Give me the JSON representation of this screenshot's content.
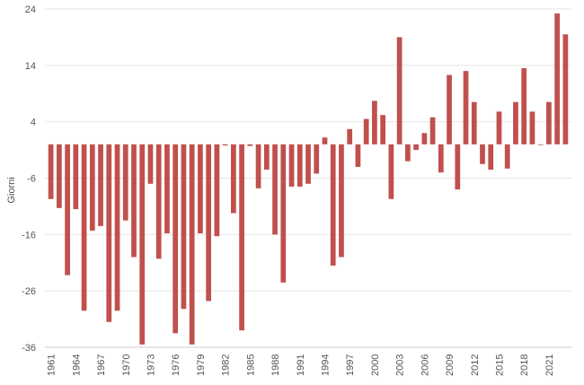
{
  "chart_data": {
    "type": "bar",
    "title": "",
    "xlabel": "",
    "ylabel": "Giorni",
    "ylim": [
      -36,
      24
    ],
    "yticks": [
      24,
      14,
      4,
      -6,
      -16,
      -26,
      -36
    ],
    "grid": true,
    "legend": "none",
    "bar_color": "#c0504d",
    "xtick_labels": [
      "1961",
      "1964",
      "1967",
      "1970",
      "1973",
      "1976",
      "1979",
      "1982",
      "1985",
      "1988",
      "1991",
      "1994",
      "1997",
      "2000",
      "2003",
      "2006",
      "2009",
      "2012",
      "2015",
      "2018",
      "2021"
    ],
    "categories": [
      "1961",
      "1962",
      "1963",
      "1964",
      "1965",
      "1966",
      "1967",
      "1968",
      "1969",
      "1970",
      "1971",
      "1972",
      "1973",
      "1974",
      "1975",
      "1976",
      "1977",
      "1978",
      "1979",
      "1980",
      "1981",
      "1982",
      "1983",
      "1984",
      "1985",
      "1986",
      "1987",
      "1988",
      "1989",
      "1990",
      "1991",
      "1992",
      "1993",
      "1994",
      "1995",
      "1996",
      "1997",
      "1998",
      "1999",
      "2000",
      "2001",
      "2002",
      "2003",
      "2004",
      "2005",
      "2006",
      "2007",
      "2008",
      "2009",
      "2010",
      "2011",
      "2012",
      "2013",
      "2014",
      "2015",
      "2016",
      "2017",
      "2018",
      "2019",
      "2020",
      "2021",
      "2022",
      "2023"
    ],
    "values": [
      -9.7,
      -11.3,
      -23.2,
      -11.5,
      -29.5,
      -15.3,
      -14.5,
      -31.5,
      -29.5,
      -13.5,
      -20.0,
      -35.5,
      -7.0,
      -20.3,
      -15.8,
      -33.5,
      -29.2,
      -35.5,
      -15.8,
      -27.8,
      -16.3,
      -0.2,
      -12.2,
      -33.0,
      -0.3,
      -7.8,
      -4.5,
      -16.0,
      -24.5,
      -7.5,
      -7.5,
      -7.0,
      -5.2,
      1.2,
      -21.5,
      -20.0,
      2.7,
      -4.0,
      4.5,
      7.7,
      5.2,
      -9.7,
      19.0,
      -3.0,
      -1.0,
      2.0,
      4.8,
      -5.0,
      12.3,
      -8.0,
      13.0,
      7.5,
      -3.5,
      -4.5,
      5.8,
      -4.3,
      7.5,
      13.5,
      5.8,
      0.0,
      7.5,
      23.2,
      19.5
    ]
  }
}
